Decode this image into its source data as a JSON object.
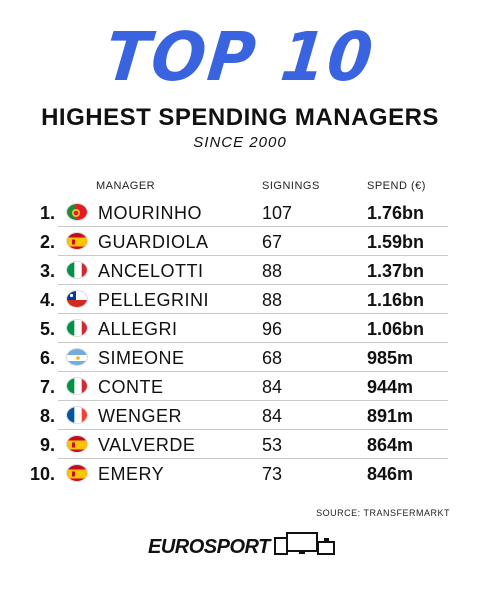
{
  "title": "TOP 10",
  "headline": "HIGHEST SPENDING MANAGERS",
  "subhead": "SINCE 2000",
  "columns": {
    "manager": "MANAGER",
    "signings": "SIGNINGS",
    "spend": "SPEND (€)"
  },
  "rows": [
    {
      "rank": "1.",
      "country": "Portugal",
      "name": "MOURINHO",
      "signings": "107",
      "spend": "1.76bn"
    },
    {
      "rank": "2.",
      "country": "Spain",
      "name": "GUARDIOLA",
      "signings": "67",
      "spend": "1.59bn"
    },
    {
      "rank": "3.",
      "country": "Italy",
      "name": "ANCELOTTI",
      "signings": "88",
      "spend": "1.37bn"
    },
    {
      "rank": "4.",
      "country": "Chile",
      "name": "PELLEGRINI",
      "signings": "88",
      "spend": "1.16bn"
    },
    {
      "rank": "5.",
      "country": "Italy",
      "name": "ALLEGRI",
      "signings": "96",
      "spend": "1.06bn"
    },
    {
      "rank": "6.",
      "country": "Argentina",
      "name": "SIMEONE",
      "signings": "68",
      "spend": "985m"
    },
    {
      "rank": "7.",
      "country": "Italy",
      "name": "CONTE",
      "signings": "84",
      "spend": "944m"
    },
    {
      "rank": "8.",
      "country": "France",
      "name": "WENGER",
      "signings": "84",
      "spend": "891m"
    },
    {
      "rank": "9.",
      "country": "Spain",
      "name": "VALVERDE",
      "signings": "53",
      "spend": "864m"
    },
    {
      "rank": "10.",
      "country": "Spain",
      "name": "EMERY",
      "signings": "73",
      "spend": "846m"
    }
  ],
  "source": "SOURCE: TRANSFERMARKT",
  "brand": "EUROSPORT",
  "colors": {
    "title": "#3a63e0",
    "text": "#111111",
    "divider": "#c9c9c9"
  }
}
